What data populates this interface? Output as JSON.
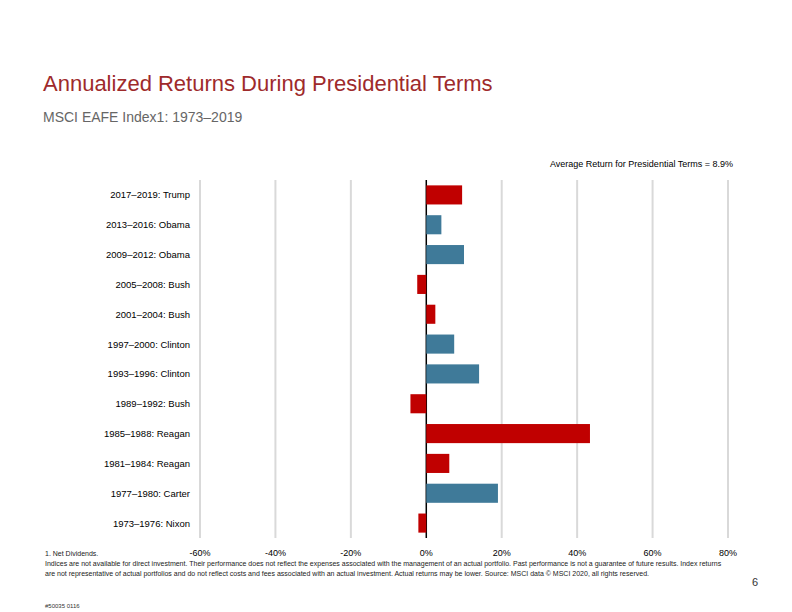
{
  "chart_data": {
    "type": "bar",
    "orientation": "horizontal",
    "title": "Annualized Returns During Presidential Terms",
    "subtitle": "MSCI EAFE Index1: 1973–2019",
    "annotation": "Average Return for Presidential Terms = 8.9%",
    "footnote": "1. Net Dividends.",
    "disclaimer": "Indices are not available for direct investment. Their performance does not reflect the expenses associated with the management of an actual portfolio. Past performance is not a guarantee of future results. Index returns are not representative of actual portfolios and do not reflect costs and fees associated with an actual investment. Actual returns may be lower. Source: MSCI data © MSCI 2020, all rights reserved.",
    "page_number": "6",
    "code": "#50035 0116",
    "categories": [
      "2017–2019: Trump",
      "2013–2016: Obama",
      "2009–2012: Obama",
      "2005–2008: Bush",
      "2001–2004: Bush",
      "1997–2000: Clinton",
      "1993–1996: Clinton",
      "1989–1992: Bush",
      "1985–1988: Reagan",
      "1981–1984: Reagan",
      "1977–1980: Carter",
      "1973–1976: Nixon"
    ],
    "values": [
      9.5,
      4.0,
      10.0,
      -2.4,
      2.4,
      7.4,
      14.0,
      -4.2,
      43.4,
      6.1,
      19.0,
      -2.1
    ],
    "colors": [
      "#c00000",
      "#3f7a99",
      "#3f7a99",
      "#c00000",
      "#c00000",
      "#3f7a99",
      "#3f7a99",
      "#c00000",
      "#c00000",
      "#c00000",
      "#3f7a99",
      "#c00000"
    ],
    "xlim": [
      -60,
      80
    ],
    "xticks": [
      {
        "value": -60,
        "label": "-60%"
      },
      {
        "value": -40,
        "label": "-40%"
      },
      {
        "value": -20,
        "label": "-20%"
      },
      {
        "value": 0,
        "label": "0%"
      },
      {
        "value": 20,
        "label": "20%"
      },
      {
        "value": 40,
        "label": "40%"
      },
      {
        "value": 60,
        "label": "60%"
      },
      {
        "value": 80,
        "label": "80%"
      }
    ],
    "grid": true
  }
}
